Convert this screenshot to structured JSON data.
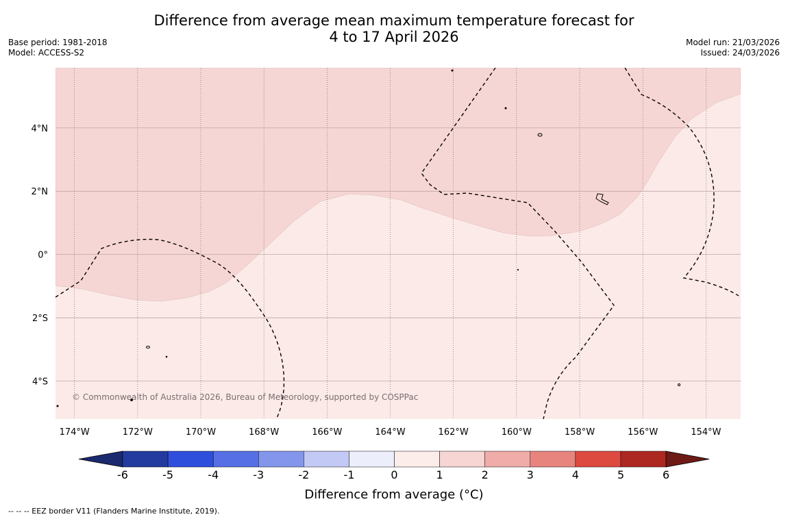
{
  "title": {
    "line1": "Difference from average mean maximum temperature forecast for",
    "line2": "4 to 17 April 2026"
  },
  "meta": {
    "base_period": "Base period: 1981-2018",
    "model": "Model: ACCESS-S2",
    "model_run": "Model run: 21/03/2026",
    "issued": "Issued: 24/03/2026"
  },
  "map": {
    "lon_range": [
      -174.6,
      -152.9
    ],
    "lat_range": [
      -5.2,
      5.9
    ],
    "x_ticks": [
      {
        "value": -174,
        "label": "174°W"
      },
      {
        "value": -172,
        "label": "172°W"
      },
      {
        "value": -170,
        "label": "170°W"
      },
      {
        "value": -168,
        "label": "168°W"
      },
      {
        "value": -166,
        "label": "166°W"
      },
      {
        "value": -164,
        "label": "164°W"
      },
      {
        "value": -162,
        "label": "162°W"
      },
      {
        "value": -160,
        "label": "160°W"
      },
      {
        "value": -158,
        "label": "158°W"
      },
      {
        "value": -156,
        "label": "156°W"
      },
      {
        "value": -154,
        "label": "154°W"
      }
    ],
    "y_ticks": [
      {
        "value": 4,
        "label": "4°N"
      },
      {
        "value": 2,
        "label": "2°N"
      },
      {
        "value": 0,
        "label": "0°"
      },
      {
        "value": -2,
        "label": "2°S"
      },
      {
        "value": -4,
        "label": "4°S"
      }
    ],
    "regions": [
      {
        "name": "anomaly-1-to-2",
        "range": "1 to 2",
        "color": "#f6d6d4"
      },
      {
        "name": "anomaly-0-to-1",
        "range": "0 to 1",
        "color": "#fbeae8"
      }
    ],
    "copyright": "© Commonwealth of Australia 2026, Bureau of Meteorology, supported by COSPPac"
  },
  "colorbar": {
    "ticks": [
      "-6",
      "-5",
      "-4",
      "-3",
      "-2",
      "-1",
      "0",
      "1",
      "2",
      "3",
      "4",
      "5",
      "6"
    ],
    "colors": [
      "#233b9e",
      "#2e4fdc",
      "#566fe4",
      "#8396ec",
      "#c3c9f5",
      "#eceefb",
      "#fcedeb",
      "#f6d5d3",
      "#efaca8",
      "#e7847e",
      "#dc4a40",
      "#ad2820"
    ],
    "under_color": "#1b2a6e",
    "over_color": "#6e1a16",
    "title": "Difference from average (°C)"
  },
  "footnote": "--  --  -- EEZ border V11 (Flanders Marine Institute, 2019)."
}
